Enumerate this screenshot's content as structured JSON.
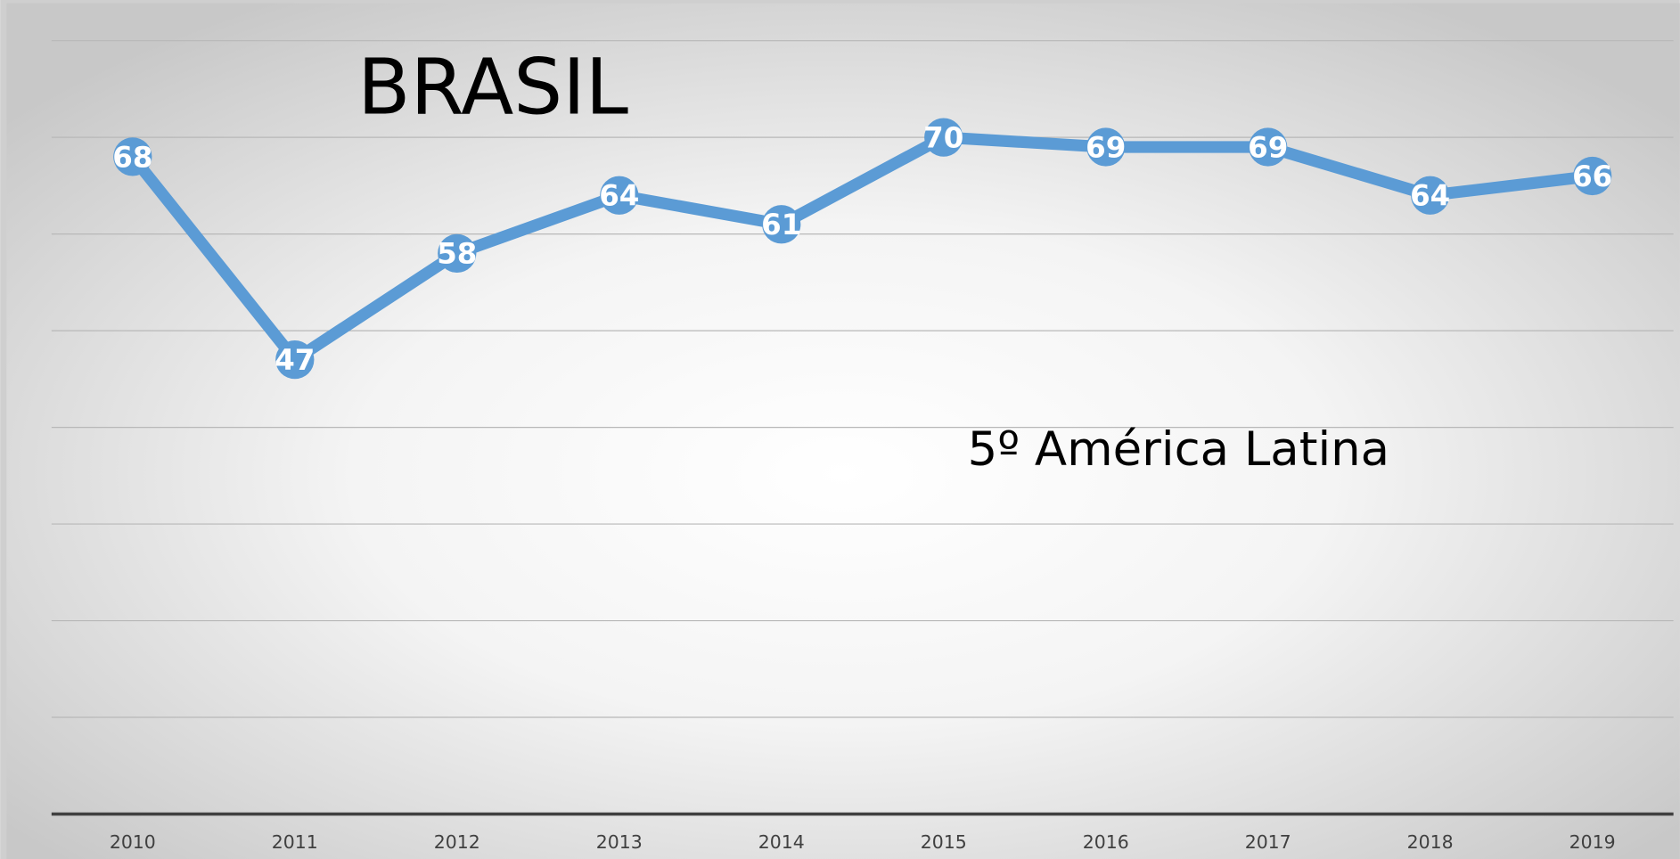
{
  "chart_data": {
    "type": "line",
    "title": "BRASIL",
    "annotation": "5º  América Latina",
    "categories": [
      "2010",
      "2011",
      "2012",
      "2013",
      "2014",
      "2015",
      "2016",
      "2017",
      "2018",
      "2019"
    ],
    "values": [
      68,
      47,
      58,
      64,
      61,
      70,
      69,
      69,
      64,
      66
    ],
    "color": "#5b9bd5",
    "ylim": [
      0,
      80
    ],
    "yticks": [
      0,
      10,
      20,
      30,
      40,
      50,
      60,
      70,
      80
    ],
    "grid": true
  }
}
